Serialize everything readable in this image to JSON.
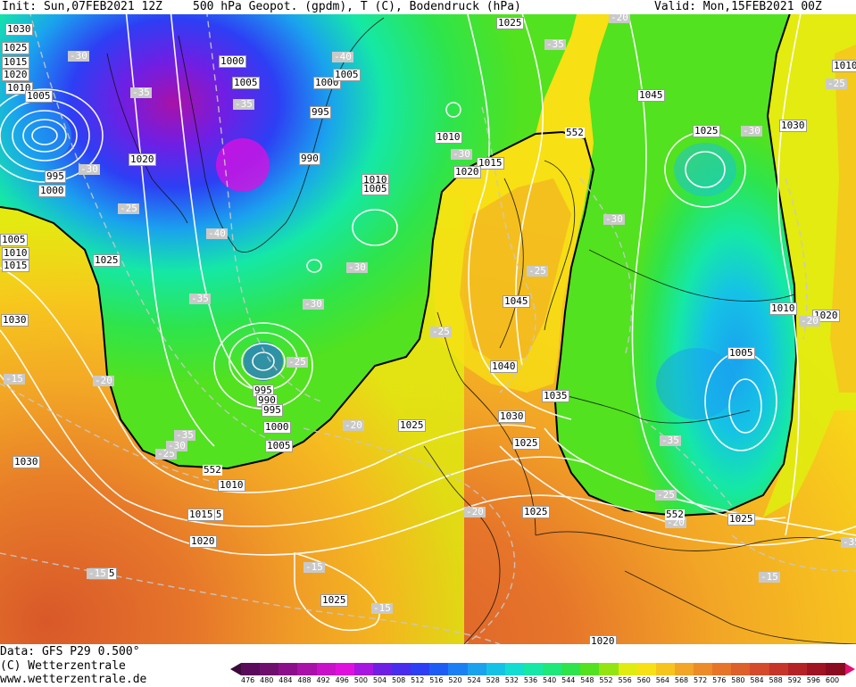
{
  "header": {
    "init": "Init: Sun,07FEB2021 12Z",
    "title": "500 hPa Geopot. (gpdm), T (C), Bodendruck (hPa)",
    "valid": "Valid: Mon,15FEB2021 00Z"
  },
  "footer": {
    "line1": "Data: GFS P29 0.500°",
    "line2": "(C) Wetterzentrale",
    "line3": "www.wetterzentrale.de"
  },
  "legend": {
    "values": [
      "476",
      "480",
      "484",
      "488",
      "492",
      "496",
      "500",
      "504",
      "508",
      "512",
      "516",
      "520",
      "524",
      "528",
      "532",
      "536",
      "540",
      "544",
      "548",
      "552",
      "556",
      "560",
      "564",
      "568",
      "572",
      "576",
      "580",
      "584",
      "588",
      "592",
      "596",
      "600"
    ],
    "colors": [
      "#5a0a5a",
      "#6e0f6e",
      "#8b0f8b",
      "#a812a8",
      "#c811c8",
      "#e00fe0",
      "#a616e0",
      "#6f1fe4",
      "#4a2cee",
      "#2d3ff4",
      "#1f5cf6",
      "#1c80f4",
      "#1aa2ee",
      "#15c2e6",
      "#12ddd0",
      "#15e8a6",
      "#1ee87a",
      "#2ee44c",
      "#52e21f",
      "#94e412",
      "#e0ec10",
      "#f7e014",
      "#f7c41e",
      "#f2a526",
      "#ec8c28",
      "#e6752a",
      "#dd5f2a",
      "#d44a2a",
      "#c63528",
      "#b52226",
      "#a01322",
      "#8a0a20"
    ]
  },
  "pressure_labels": [
    "1030",
    "1025",
    "1020",
    "1015",
    "1010",
    "1005",
    "1000",
    "1005",
    "995",
    "1000",
    "1000",
    "1005",
    "995",
    "990",
    "1010",
    "1005",
    "1015",
    "1020",
    "1010",
    "1025",
    "1030",
    "1025",
    "1020",
    "1005",
    "1010",
    "1015",
    "1025",
    "995",
    "990",
    "995",
    "1000",
    "1005",
    "1045",
    "1040",
    "1035",
    "1030",
    "1025",
    "1025",
    "1020",
    "1015",
    "1010",
    "1025",
    "1030",
    "1005",
    "1010",
    "1020",
    "1025",
    "1045",
    "1030",
    "1025",
    "1010",
    "1020",
    "1025",
    "1015"
  ],
  "temp_labels": [
    "-30",
    "-35",
    "-40",
    "-35",
    "-25",
    "-40",
    "-30",
    "-35",
    "-30",
    "-25",
    "-25",
    "-20",
    "-15",
    "-20",
    "-30",
    "-25",
    "-35",
    "-30",
    "-25",
    "-20",
    "-15",
    "-15",
    "-30",
    "-35",
    "-25",
    "-35",
    "-20",
    "-15",
    "-25",
    "-30",
    "-15",
    "-20",
    "-20",
    "-30",
    "-35"
  ],
  "contour_labels": [
    "552",
    "552",
    "552",
    "552"
  ]
}
